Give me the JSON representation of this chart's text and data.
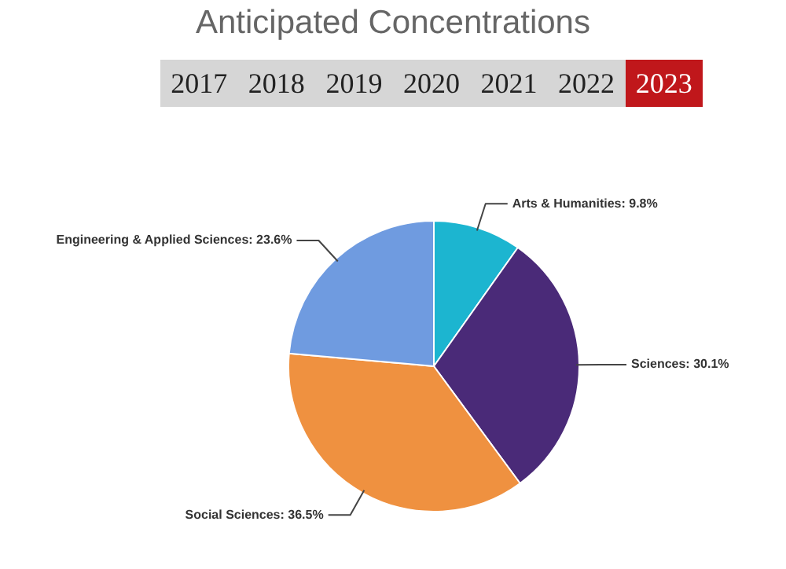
{
  "chart_data": {
    "type": "pie",
    "title": "Anticipated Concentrations",
    "annotations": [
      "2017",
      "2018",
      "2019",
      "2020",
      "2021",
      "2022",
      "2023"
    ],
    "categories": [
      "Arts & Humanities",
      "Sciences",
      "Social Sciences",
      "Engineering & Applied Sciences"
    ],
    "values": [
      9.8,
      30.1,
      36.5,
      23.6
    ],
    "value_labels": [
      "9.8%",
      "30.1%",
      "36.5%",
      "23.6%"
    ],
    "colors": [
      "#1cb5d0",
      "#4a2a78",
      "#ef9140",
      "#6f9be0"
    ]
  }
}
